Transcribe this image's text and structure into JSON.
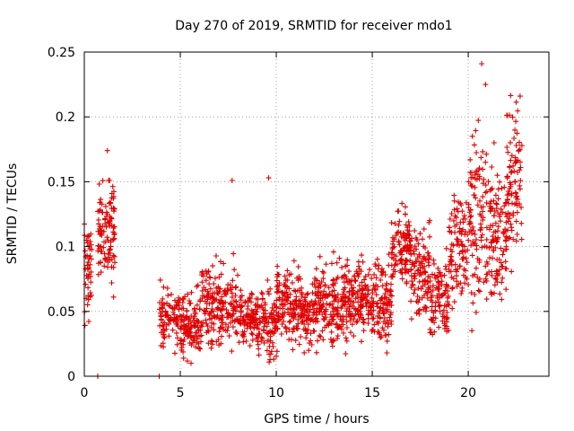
{
  "chart_data": {
    "type": "scatter",
    "title": "Day 270 of 2019, SRMTID for receiver mdo1",
    "xlabel": "GPS time / hours",
    "ylabel": "SRMTID / TECUs",
    "xlim": [
      0,
      24.2
    ],
    "ylim": [
      0,
      0.25
    ],
    "xticks": [
      0,
      5,
      10,
      15,
      20
    ],
    "xtick_labels": [
      "0",
      "5",
      "10",
      "15",
      "20"
    ],
    "yticks": [
      0,
      0.05,
      0.1,
      0.15,
      0.2,
      0.25
    ],
    "ytick_labels": [
      "0",
      "0.05",
      "0.1",
      "0.15",
      "0.2",
      "0.25"
    ],
    "grid": true,
    "marker": "+",
    "series_color": "#e00000",
    "clusters": [
      {
        "x_start": 0.0,
        "x_end": 0.4,
        "y_mean": 0.085,
        "y_spread": 0.025,
        "n": 45
      },
      {
        "x_start": 0.7,
        "x_end": 1.6,
        "y_mean": 0.115,
        "y_spread": 0.03,
        "n": 110
      },
      {
        "x_start": 3.9,
        "x_end": 5.0,
        "y_mean": 0.045,
        "y_spread": 0.015,
        "n": 90
      },
      {
        "x_start": 5.0,
        "x_end": 6.0,
        "y_mean": 0.04,
        "y_spread": 0.016,
        "n": 110
      },
      {
        "x_start": 6.0,
        "x_end": 7.0,
        "y_mean": 0.055,
        "y_spread": 0.022,
        "n": 100
      },
      {
        "x_start": 7.0,
        "x_end": 8.0,
        "y_mean": 0.055,
        "y_spread": 0.022,
        "n": 100
      },
      {
        "x_start": 8.0,
        "x_end": 9.0,
        "y_mean": 0.045,
        "y_spread": 0.015,
        "n": 100
      },
      {
        "x_start": 9.0,
        "x_end": 10.0,
        "y_mean": 0.04,
        "y_spread": 0.018,
        "n": 100
      },
      {
        "x_start": 10.0,
        "x_end": 11.0,
        "y_mean": 0.055,
        "y_spread": 0.02,
        "n": 110
      },
      {
        "x_start": 11.0,
        "x_end": 12.0,
        "y_mean": 0.05,
        "y_spread": 0.018,
        "n": 110
      },
      {
        "x_start": 12.0,
        "x_end": 13.0,
        "y_mean": 0.055,
        "y_spread": 0.022,
        "n": 110
      },
      {
        "x_start": 13.0,
        "x_end": 14.0,
        "y_mean": 0.06,
        "y_spread": 0.02,
        "n": 110
      },
      {
        "x_start": 14.0,
        "x_end": 15.0,
        "y_mean": 0.06,
        "y_spread": 0.02,
        "n": 110
      },
      {
        "x_start": 15.0,
        "x_end": 16.0,
        "y_mean": 0.055,
        "y_spread": 0.022,
        "n": 110
      },
      {
        "x_start": 16.0,
        "x_end": 17.0,
        "y_mean": 0.1,
        "y_spread": 0.02,
        "n": 110
      },
      {
        "x_start": 17.0,
        "x_end": 18.0,
        "y_mean": 0.08,
        "y_spread": 0.025,
        "n": 110
      },
      {
        "x_start": 18.0,
        "x_end": 19.0,
        "y_mean": 0.06,
        "y_spread": 0.02,
        "n": 100
      },
      {
        "x_start": 19.0,
        "x_end": 20.0,
        "y_mean": 0.1,
        "y_spread": 0.03,
        "n": 100
      },
      {
        "x_start": 20.0,
        "x_end": 21.0,
        "y_mean": 0.12,
        "y_spread": 0.045,
        "n": 110
      },
      {
        "x_start": 21.0,
        "x_end": 22.0,
        "y_mean": 0.11,
        "y_spread": 0.04,
        "n": 110
      },
      {
        "x_start": 22.0,
        "x_end": 22.8,
        "y_mean": 0.15,
        "y_spread": 0.04,
        "n": 90
      }
    ],
    "outliers": [
      {
        "x": 0.7,
        "y": 0.0
      },
      {
        "x": 3.9,
        "y": 0.0
      },
      {
        "x": 20.7,
        "y": 0.241
      },
      {
        "x": 20.9,
        "y": 0.225
      },
      {
        "x": 22.7,
        "y": 0.216
      },
      {
        "x": 9.6,
        "y": 0.153
      },
      {
        "x": 7.7,
        "y": 0.151
      },
      {
        "x": 1.2,
        "y": 0.174
      }
    ]
  }
}
